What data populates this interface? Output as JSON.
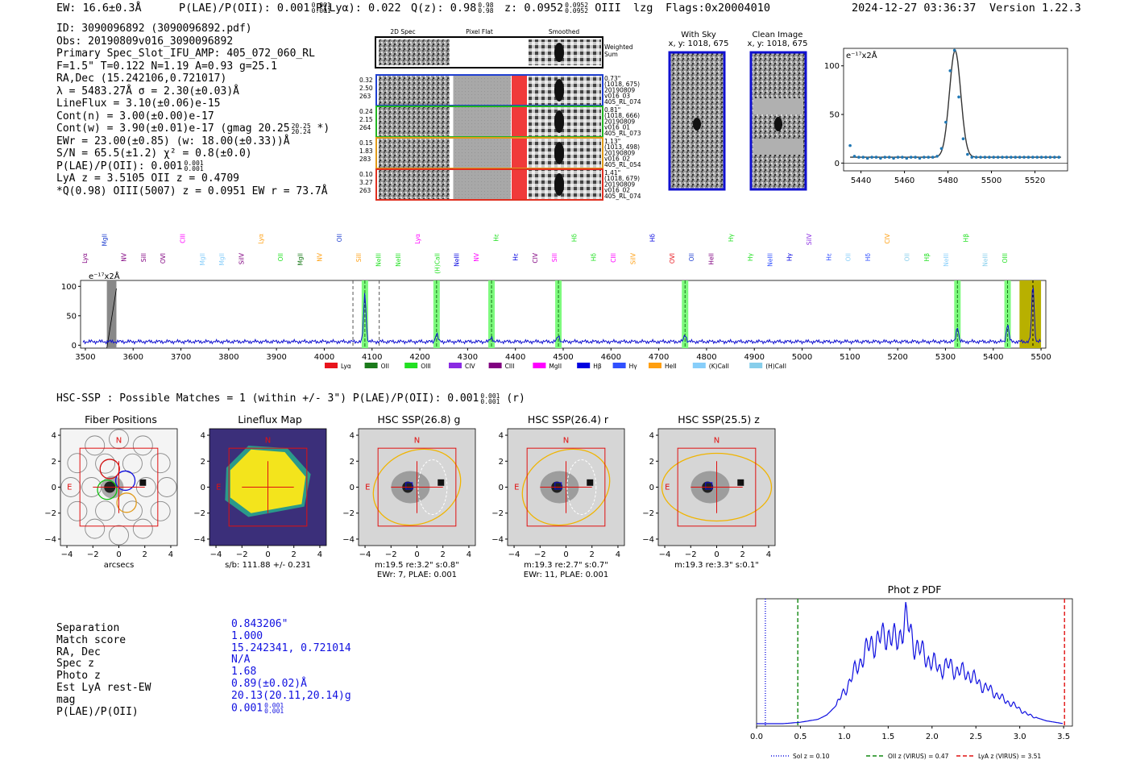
{
  "header": {
    "ew": "EW: 16.6±0.3Å",
    "plae": "P(LAE)/P(OII): 0.001",
    "plae_hi": "0.001",
    "plae_lo": "0.001",
    "plya": "P(Lyα): 0.022",
    "qz": "Q(z): 0.98",
    "qz_hi": "0.98",
    "qz_lo": "0.98",
    "z": "z: 0.0952",
    "z_hi": "0.0952",
    "z_lo": "0.0952",
    "line": "OIII",
    "method": "lzg",
    "flags": "Flags:0x20004010",
    "timestamp": "2024-12-27 03:36:37",
    "version": "Version 1.22.3"
  },
  "info": {
    "id": "ID: 3090096892 (3090096892.pdf)",
    "obs": "Obs: 20190809v016_3090096892",
    "primary": "Primary Spec_Slot_IFU_AMP: 405_072_060_RL",
    "fparams": "F=1.5\"  T=0.122  N=1.19  A=0.93  g=25.1",
    "radec": "RA,Dec (15.242106,0.721017)",
    "lambda": "λ = 5483.27Å  σ = 2.30(±0.03)Å",
    "lineflux": "LineFlux = 3.10(±0.06)e-15",
    "contn": "Cont(n) = 3.00(±0.00)e-17",
    "contw": "Cont(w) = 3.90(±0.01)e-17 (gmag 20.25",
    "contw_hi": "20.25",
    "contw_lo": "20.24",
    "contw_end": "*)",
    "ewr": "EWr = 23.00(±0.85) (w: 18.00(±0.33))Å",
    "sn": "S/N = 65.5(±1.2)  χ² = 0.8(±0.0)",
    "plae": "P(LAE)/P(OII): 0.001",
    "plae_hi": "0.001",
    "plae_lo": "0.001",
    "lya": "LyA z = 3.5105  OII z = 0.4709",
    "q": "*Q(0.98) OIII(5007) z = 0.0951  EW r = 73.7Å"
  },
  "cutouts": {
    "col_titles": [
      "2D Spec",
      "Pixel Flat",
      "Smoothed"
    ],
    "weighted": "Weighted Sum",
    "rows": [
      {
        "left": [
          "0.32",
          "2.50",
          "263"
        ],
        "right": [
          "0.73\"",
          "(1018, 675)",
          "20190809",
          "v016_03",
          "405_RL_074"
        ],
        "color": "#1f3fd0"
      },
      {
        "left": [
          "0.24",
          "2.15",
          "264"
        ],
        "right": [
          "0.81\"",
          "(1018, 666)",
          "20190809",
          "v016_01",
          "405_RL_073"
        ],
        "color": "#22b422"
      },
      {
        "left": [
          "0.15",
          "1.83",
          "283"
        ],
        "right": [
          "1.13\"",
          "(1013, 498)",
          "20190809",
          "v016_02",
          "405_RL_054"
        ],
        "color": "#e09a1a"
      },
      {
        "left": [
          "0.10",
          "3.27",
          "263"
        ],
        "right": [
          "1.41\"",
          "(1018, 679)",
          "20190809",
          "v016_02",
          "405_RL_074"
        ],
        "color": "#e03020"
      }
    ]
  },
  "sky": {
    "with_sky": "With Sky",
    "with_sky_xy": "x, y: 1018, 675",
    "clean": "Clean Image",
    "clean_xy": "x, y: 1018, 675"
  },
  "zoom_chart": {
    "unit_label": "e⁻¹⁷x2Å",
    "yticks": [
      "100",
      "50",
      "0"
    ],
    "xticks": [
      "5440",
      "5460",
      "5480",
      "5500",
      "5520"
    ]
  },
  "spectrum": {
    "unit_label": "e⁻¹⁷x2Å",
    "yticks": [
      "100",
      "50",
      "0"
    ],
    "xticks": [
      "3500",
      "3600",
      "3700",
      "3800",
      "3900",
      "4000",
      "4100",
      "4200",
      "4300",
      "4400",
      "4500",
      "4600",
      "4700",
      "4800",
      "4900",
      "5000",
      "5100",
      "5200",
      "5300",
      "5400",
      "5500"
    ],
    "legend": [
      {
        "label": "Lyα",
        "color": "#e8141c"
      },
      {
        "label": "OII",
        "color": "#1a7a1a"
      },
      {
        "label": "OIII",
        "color": "#22e022"
      },
      {
        "label": "CIV",
        "color": "#8a2be2"
      },
      {
        "label": "CIII",
        "color": "#800080"
      },
      {
        "label": "MgII",
        "color": "#ff00ff"
      },
      {
        "label": "Hβ",
        "color": "#0000e0"
      },
      {
        "label": "Hγ",
        "color": "#3050ff"
      },
      {
        "label": "HeII",
        "color": "#ff9f10"
      },
      {
        "label": "(K)CaII",
        "color": "#87cefa"
      },
      {
        "label": "(H)CaII",
        "color": "#87ceeb"
      }
    ],
    "top_labels": [
      {
        "text": "Lyα",
        "color": "#800080"
      },
      {
        "text": "MgII",
        "color": "#1f3fd0"
      },
      {
        "text": "NV",
        "color": "#800080"
      },
      {
        "text": "SiII",
        "color": "#800080"
      },
      {
        "text": "OVI",
        "color": "#800080"
      },
      {
        "text": "CIII",
        "color": "#ff00ff"
      },
      {
        "text": "MgII",
        "color": "#87cefa"
      },
      {
        "text": "MgII",
        "color": "#87cefa"
      },
      {
        "text": "SiIV",
        "color": "#800080"
      },
      {
        "text": "Lyα",
        "color": "#ff9f10"
      },
      {
        "text": "OII",
        "color": "#22e022"
      },
      {
        "text": "MgII",
        "color": "#1a7a1a"
      },
      {
        "text": "NV",
        "color": "#ff9f10"
      },
      {
        "text": "OII",
        "color": "#1f3fd0"
      },
      {
        "text": "SiII",
        "color": "#ff9f10"
      },
      {
        "text": "NeIII",
        "color": "#22e022"
      },
      {
        "text": "NeIII",
        "color": "#22e022"
      },
      {
        "text": "Lyα",
        "color": "#ff00ff"
      },
      {
        "text": "(H)CaII",
        "color": "#22e022"
      },
      {
        "text": "NeIII",
        "color": "#0000e0"
      },
      {
        "text": "NV",
        "color": "#ff00ff"
      },
      {
        "text": "Hε",
        "color": "#22e022"
      },
      {
        "text": "Hε",
        "color": "#0000e0"
      },
      {
        "text": "CIV",
        "color": "#800080"
      },
      {
        "text": "SiII",
        "color": "#ff00ff"
      },
      {
        "text": "Hδ",
        "color": "#22e022"
      },
      {
        "text": "Hδ",
        "color": "#22e022"
      },
      {
        "text": "CIII",
        "color": "#ff00ff"
      },
      {
        "text": "SiIV",
        "color": "#ff9f10"
      },
      {
        "text": "Hδ",
        "color": "#0000e0"
      },
      {
        "text": "OVI",
        "color": "#e8141c"
      },
      {
        "text": "OII",
        "color": "#1f3fd0"
      },
      {
        "text": "HeII",
        "color": "#800080"
      },
      {
        "text": "Hγ",
        "color": "#22e022"
      },
      {
        "text": "Hγ",
        "color": "#22e022"
      },
      {
        "text": "NeIII",
        "color": "#3050ff"
      },
      {
        "text": "Hγ",
        "color": "#0000e0"
      },
      {
        "text": "SiIV",
        "color": "#8a2be2"
      },
      {
        "text": "Hε",
        "color": "#3050ff"
      },
      {
        "text": "OII",
        "color": "#87cefa"
      },
      {
        "text": "Hδ",
        "color": "#3050ff"
      },
      {
        "text": "CIV",
        "color": "#ff9f10"
      },
      {
        "text": "OII",
        "color": "#87ceeb"
      },
      {
        "text": "Hβ",
        "color": "#22e022"
      },
      {
        "text": "NeIII",
        "color": "#87cefa"
      },
      {
        "text": "Hβ",
        "color": "#22e022"
      },
      {
        "text": "NeIII",
        "color": "#87ceeb"
      },
      {
        "text": "OIII",
        "color": "#22e022"
      }
    ]
  },
  "hsc": {
    "summary": "HSC-SSP : Possible Matches = 1 (within +/- 3\")  P(LAE)/P(OII): 0.001",
    "summary_hi": "0.001",
    "summary_lo": "0.001",
    "summary_end": "(r)",
    "panels": [
      {
        "title": "Fiber Positions",
        "cap1": "arcsecs",
        "cap2": "",
        "compass_n": "N",
        "compass_e": "E"
      },
      {
        "title": "Lineflux Map",
        "cap1": "s/b: 111.88 +/- 0.231",
        "cap2": "",
        "compass_n": "N",
        "compass_e": "E"
      },
      {
        "title": "HSC SSP(26.8) g",
        "cap1": "m:19.5  re:3.2\"  s:0.8\"",
        "cap2": "EWr: 7, PLAE: 0.001",
        "compass_n": "N",
        "compass_e": "E"
      },
      {
        "title": "HSC SSP(26.4) r",
        "cap1": "m:19.3  re:2.7\"  s:0.7\"",
        "cap2": "EWr: 11, PLAE: 0.001",
        "compass_n": "N",
        "compass_e": "E"
      },
      {
        "title": "HSC SSP(25.5) z",
        "cap1": "m:19.3  re:3.3\"  s:0.1\"",
        "cap2": "",
        "compass_n": "N",
        "compass_e": "E"
      }
    ],
    "yticks": [
      "4",
      "2",
      "0",
      "−2",
      "−4"
    ],
    "xticks": [
      "−4",
      "−2",
      "0",
      "2",
      "4"
    ]
  },
  "match": {
    "labels": [
      "Separation",
      "Match score",
      "RA, Dec",
      "Spec z",
      "Photo z",
      "Est LyA rest-EW",
      "mag",
      "P(LAE)/P(OII)"
    ],
    "values": [
      "0.843206\"",
      "1.000",
      "15.242341, 0.721014",
      "N/A",
      "1.68",
      "0.89(±0.02)Å",
      "20.13(20.11,20.14)g",
      "0.001"
    ],
    "plae_hi": "0.001",
    "plae_lo": "0.001"
  },
  "photz": {
    "title": "Phot z PDF",
    "xticks": [
      "0.0",
      "0.5",
      "1.0",
      "1.5",
      "2.0",
      "2.5",
      "3.0",
      "3.5"
    ],
    "legend": [
      {
        "label": "Sol z = 0.10",
        "color": "#1010e0"
      },
      {
        "label": "OII z (VIRUS) = 0.47",
        "color": "#118811"
      },
      {
        "label": "LyA z (VIRUS) = 3.51",
        "color": "#e01010"
      }
    ]
  },
  "chart_data": [
    {
      "type": "line",
      "title": "",
      "xlabel": "",
      "ylabel": "e⁻¹⁷x2Å",
      "xlim": [
        5432,
        5535
      ],
      "ylim": [
        -8,
        118
      ],
      "x": [
        5435,
        5437,
        5439,
        5441,
        5443,
        5445,
        5447,
        5449,
        5451,
        5453,
        5455,
        5457,
        5459,
        5461,
        5463,
        5465,
        5467,
        5469,
        5471,
        5473,
        5475,
        5477,
        5479,
        5481,
        5483,
        5485,
        5487,
        5489,
        5491,
        5493,
        5495,
        5497,
        5499,
        5501,
        5503,
        5505,
        5507,
        5509,
        5511,
        5513,
        5515,
        5517,
        5519,
        5521,
        5523,
        5525,
        5527,
        5529,
        5531
      ],
      "values": [
        18,
        7,
        6,
        6,
        5,
        6,
        6,
        5,
        6,
        6,
        5,
        6,
        6,
        5,
        6,
        6,
        5,
        6,
        6,
        6,
        7,
        15,
        42,
        95,
        116,
        68,
        25,
        9,
        6,
        6,
        6,
        6,
        6,
        6,
        6,
        6,
        6,
        6,
        6,
        6,
        6,
        6,
        6,
        6,
        6,
        6,
        6,
        6,
        6
      ]
    },
    {
      "type": "line",
      "title": "",
      "xlabel": "",
      "ylabel": "e⁻¹⁷x2Å",
      "xlim": [
        3490,
        5510
      ],
      "ylim": [
        -5,
        110
      ],
      "peaks": [
        {
          "x": 4085,
          "y": 88
        },
        {
          "x": 4235,
          "y": 20
        },
        {
          "x": 4350,
          "y": 14
        },
        {
          "x": 4490,
          "y": 16
        },
        {
          "x": 4755,
          "y": 18
        },
        {
          "x": 5325,
          "y": 32
        },
        {
          "x": 5430,
          "y": 36
        },
        {
          "x": 5483,
          "y": 105
        }
      ],
      "baseline": 6
    },
    {
      "type": "line",
      "title": "Phot z PDF",
      "xlabel": "",
      "ylabel": "",
      "xlim": [
        0.0,
        3.6
      ],
      "x": [
        0.0,
        0.3,
        0.5,
        0.7,
        0.8,
        0.9,
        1.0,
        1.1,
        1.2,
        1.3,
        1.4,
        1.5,
        1.6,
        1.7,
        1.8,
        1.9,
        2.0,
        2.1,
        2.2,
        2.3,
        2.4,
        2.5,
        2.6,
        2.7,
        2.8,
        2.9,
        3.0,
        3.1,
        3.2,
        3.3,
        3.4,
        3.5
      ],
      "values": [
        0.0,
        0.0,
        0.01,
        0.03,
        0.06,
        0.12,
        0.22,
        0.34,
        0.45,
        0.55,
        0.58,
        0.62,
        0.56,
        0.72,
        0.55,
        0.48,
        0.42,
        0.38,
        0.4,
        0.36,
        0.35,
        0.3,
        0.25,
        0.22,
        0.17,
        0.14,
        0.1,
        0.06,
        0.04,
        0.02,
        0.01,
        0.0
      ],
      "vlines": [
        {
          "x": 0.1,
          "name": "Sol z"
        },
        {
          "x": 0.47,
          "name": "OII z (VIRUS)"
        },
        {
          "x": 3.51,
          "name": "LyA z (VIRUS)"
        }
      ]
    }
  ]
}
